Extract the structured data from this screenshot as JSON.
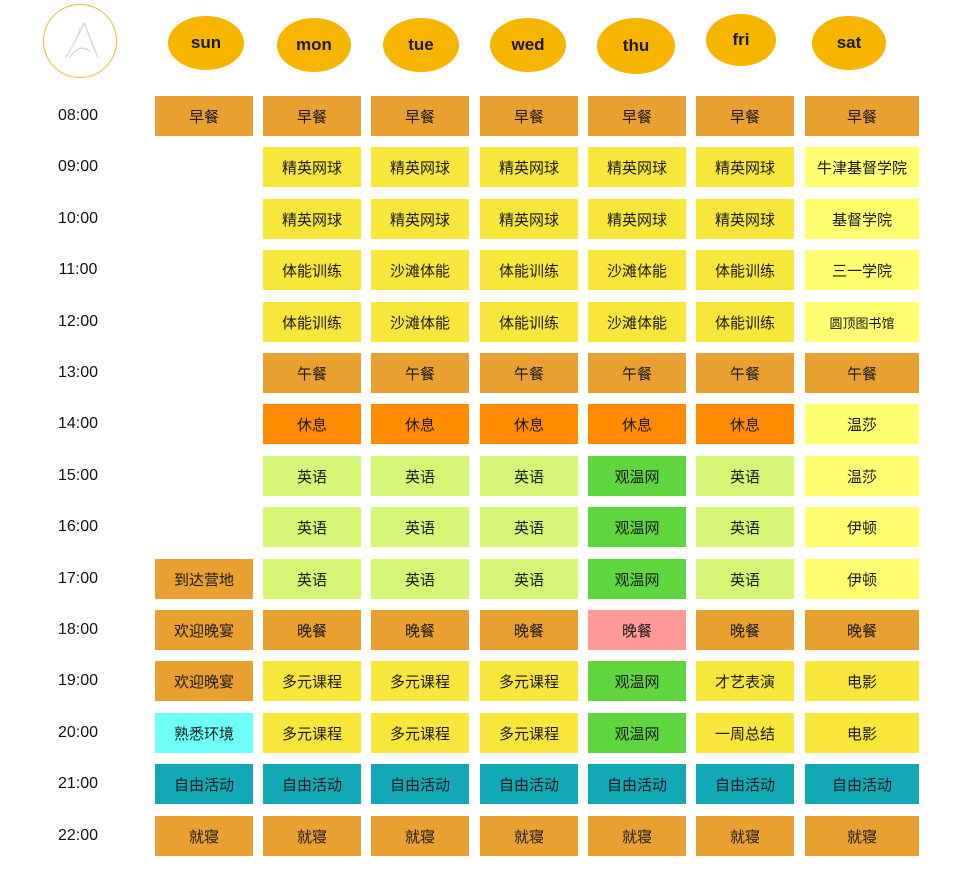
{
  "days": [
    "sun",
    "mon",
    "tue",
    "wed",
    "thu",
    "fri",
    "sat"
  ],
  "times": [
    "08:00",
    "09:00",
    "10:00",
    "11:00",
    "12:00",
    "13:00",
    "14:00",
    "15:00",
    "16:00",
    "17:00",
    "18:00",
    "19:00",
    "20:00",
    "21:00",
    "22:00"
  ],
  "colors": {
    "meal": "#e8a030",
    "tennis": "#f8e63a",
    "fitness": "#f8e63a",
    "rest": "#ff8c00",
    "english": "#d5f775",
    "wimbledon": "#5fd53e",
    "dinner_alt": "#ff9a96",
    "evening": "#f8e63a",
    "arrival": "#e8a030",
    "familiarize": "#6ffffa",
    "free": "#12a9b5",
    "trip": "#ffff70",
    "day_badge": "#f7b500"
  },
  "schedule": [
    [
      {
        "row": 0,
        "text": "早餐",
        "color": "meal"
      },
      {
        "row": 9,
        "text": "到达营地",
        "color": "arrival"
      },
      {
        "row": 10,
        "text": "欢迎晚宴",
        "color": "meal"
      },
      {
        "row": 11,
        "text": "欢迎晚宴",
        "color": "meal"
      },
      {
        "row": 12,
        "text": "熟悉环境",
        "color": "familiarize"
      },
      {
        "row": 13,
        "text": "自由活动",
        "color": "free"
      },
      {
        "row": 14,
        "text": "就寝",
        "color": "meal"
      }
    ],
    [
      {
        "row": 0,
        "text": "早餐",
        "color": "meal"
      },
      {
        "row": 1,
        "text": "精英网球",
        "color": "tennis"
      },
      {
        "row": 2,
        "text": "精英网球",
        "color": "tennis"
      },
      {
        "row": 3,
        "text": "体能训练",
        "color": "fitness"
      },
      {
        "row": 4,
        "text": "体能训练",
        "color": "fitness"
      },
      {
        "row": 5,
        "text": "午餐",
        "color": "meal"
      },
      {
        "row": 6,
        "text": "休息",
        "color": "rest"
      },
      {
        "row": 7,
        "text": "英语",
        "color": "english"
      },
      {
        "row": 8,
        "text": "英语",
        "color": "english"
      },
      {
        "row": 9,
        "text": "英语",
        "color": "english"
      },
      {
        "row": 10,
        "text": "晚餐",
        "color": "meal"
      },
      {
        "row": 11,
        "text": "多元课程",
        "color": "evening"
      },
      {
        "row": 12,
        "text": "多元课程",
        "color": "evening"
      },
      {
        "row": 13,
        "text": "自由活动",
        "color": "free"
      },
      {
        "row": 14,
        "text": "就寝",
        "color": "meal"
      }
    ],
    [
      {
        "row": 0,
        "text": "早餐",
        "color": "meal"
      },
      {
        "row": 1,
        "text": "精英网球",
        "color": "tennis"
      },
      {
        "row": 2,
        "text": "精英网球",
        "color": "tennis"
      },
      {
        "row": 3,
        "text": "沙滩体能",
        "color": "fitness"
      },
      {
        "row": 4,
        "text": "沙滩体能",
        "color": "fitness"
      },
      {
        "row": 5,
        "text": "午餐",
        "color": "meal"
      },
      {
        "row": 6,
        "text": "休息",
        "color": "rest"
      },
      {
        "row": 7,
        "text": "英语",
        "color": "english"
      },
      {
        "row": 8,
        "text": "英语",
        "color": "english"
      },
      {
        "row": 9,
        "text": "英语",
        "color": "english"
      },
      {
        "row": 10,
        "text": "晚餐",
        "color": "meal"
      },
      {
        "row": 11,
        "text": "多元课程",
        "color": "evening"
      },
      {
        "row": 12,
        "text": "多元课程",
        "color": "evening"
      },
      {
        "row": 13,
        "text": "自由活动",
        "color": "free"
      },
      {
        "row": 14,
        "text": "就寝",
        "color": "meal"
      }
    ],
    [
      {
        "row": 0,
        "text": "早餐",
        "color": "meal"
      },
      {
        "row": 1,
        "text": "精英网球",
        "color": "tennis"
      },
      {
        "row": 2,
        "text": "精英网球",
        "color": "tennis"
      },
      {
        "row": 3,
        "text": "体能训练",
        "color": "fitness"
      },
      {
        "row": 4,
        "text": "体能训练",
        "color": "fitness"
      },
      {
        "row": 5,
        "text": "午餐",
        "color": "meal"
      },
      {
        "row": 6,
        "text": "休息",
        "color": "rest"
      },
      {
        "row": 7,
        "text": "英语",
        "color": "english"
      },
      {
        "row": 8,
        "text": "英语",
        "color": "english"
      },
      {
        "row": 9,
        "text": "英语",
        "color": "english"
      },
      {
        "row": 10,
        "text": "晚餐",
        "color": "meal"
      },
      {
        "row": 11,
        "text": "多元课程",
        "color": "evening"
      },
      {
        "row": 12,
        "text": "多元课程",
        "color": "evening"
      },
      {
        "row": 13,
        "text": "自由活动",
        "color": "free"
      },
      {
        "row": 14,
        "text": "就寝",
        "color": "meal"
      }
    ],
    [
      {
        "row": 0,
        "text": "早餐",
        "color": "meal"
      },
      {
        "row": 1,
        "text": "精英网球",
        "color": "tennis"
      },
      {
        "row": 2,
        "text": "精英网球",
        "color": "tennis"
      },
      {
        "row": 3,
        "text": "沙滩体能",
        "color": "fitness"
      },
      {
        "row": 4,
        "text": "沙滩体能",
        "color": "fitness"
      },
      {
        "row": 5,
        "text": "午餐",
        "color": "meal"
      },
      {
        "row": 6,
        "text": "休息",
        "color": "rest"
      },
      {
        "row": 7,
        "text": "观温网",
        "color": "wimbledon"
      },
      {
        "row": 8,
        "text": "观温网",
        "color": "wimbledon"
      },
      {
        "row": 9,
        "text": "观温网",
        "color": "wimbledon"
      },
      {
        "row": 10,
        "text": "晚餐",
        "color": "dinner_alt"
      },
      {
        "row": 11,
        "text": "观温网",
        "color": "wimbledon"
      },
      {
        "row": 12,
        "text": "观温网",
        "color": "wimbledon"
      },
      {
        "row": 13,
        "text": "自由活动",
        "color": "free"
      },
      {
        "row": 14,
        "text": "就寝",
        "color": "meal"
      }
    ],
    [
      {
        "row": 0,
        "text": "早餐",
        "color": "meal"
      },
      {
        "row": 1,
        "text": "精英网球",
        "color": "tennis"
      },
      {
        "row": 2,
        "text": "精英网球",
        "color": "tennis"
      },
      {
        "row": 3,
        "text": "体能训练",
        "color": "fitness"
      },
      {
        "row": 4,
        "text": "体能训练",
        "color": "fitness"
      },
      {
        "row": 5,
        "text": "午餐",
        "color": "meal"
      },
      {
        "row": 6,
        "text": "休息",
        "color": "rest"
      },
      {
        "row": 7,
        "text": "英语",
        "color": "english"
      },
      {
        "row": 8,
        "text": "英语",
        "color": "english"
      },
      {
        "row": 9,
        "text": "英语",
        "color": "english"
      },
      {
        "row": 10,
        "text": "晚餐",
        "color": "meal"
      },
      {
        "row": 11,
        "text": "才艺表演",
        "color": "evening"
      },
      {
        "row": 12,
        "text": "一周总结",
        "color": "evening"
      },
      {
        "row": 13,
        "text": "自由活动",
        "color": "free"
      },
      {
        "row": 14,
        "text": "就寝",
        "color": "meal"
      }
    ],
    [
      {
        "row": 0,
        "text": "早餐",
        "color": "meal"
      },
      {
        "row": 1,
        "text": "牛津基督学院",
        "color": "trip"
      },
      {
        "row": 2,
        "text": "基督学院",
        "color": "trip"
      },
      {
        "row": 3,
        "text": "三一学院",
        "color": "trip"
      },
      {
        "row": 4,
        "text": "圆顶图书馆",
        "color": "trip",
        "small": true
      },
      {
        "row": 5,
        "text": "午餐",
        "color": "meal"
      },
      {
        "row": 6,
        "text": "温莎",
        "color": "trip"
      },
      {
        "row": 7,
        "text": "温莎",
        "color": "trip"
      },
      {
        "row": 8,
        "text": "伊顿",
        "color": "trip"
      },
      {
        "row": 9,
        "text": "伊顿",
        "color": "trip"
      },
      {
        "row": 10,
        "text": "晚餐",
        "color": "meal"
      },
      {
        "row": 11,
        "text": "电影",
        "color": "evening"
      },
      {
        "row": 12,
        "text": "电影",
        "color": "evening"
      },
      {
        "row": 13,
        "text": "自由活动",
        "color": "free"
      },
      {
        "row": 14,
        "text": "就寝",
        "color": "meal"
      }
    ]
  ]
}
